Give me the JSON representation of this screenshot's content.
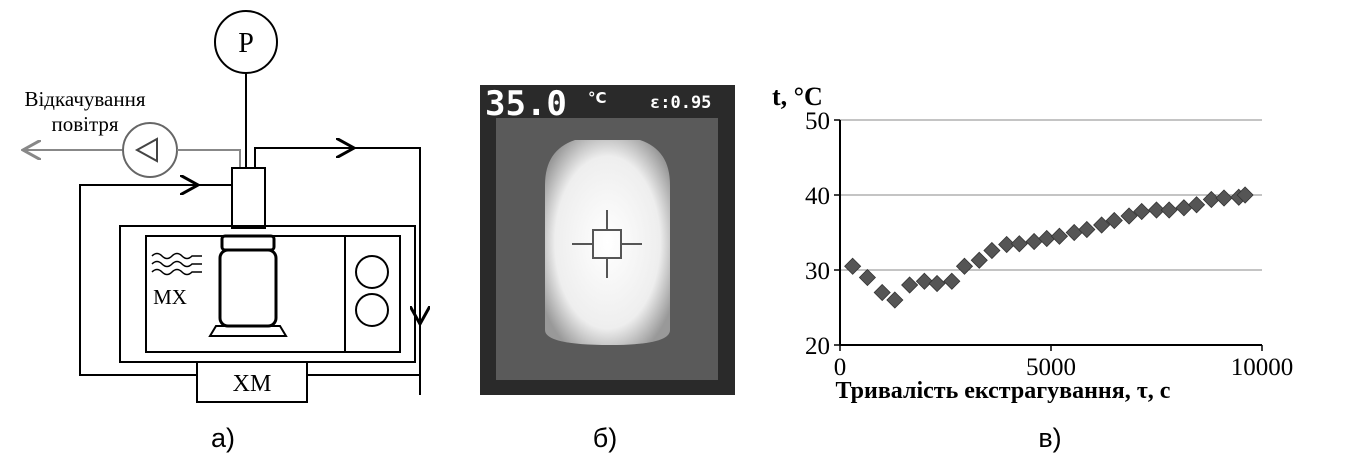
{
  "diagram": {
    "gauge": "P",
    "pump_label_1": "Відкачування",
    "pump_label_2": "повітря",
    "heater": "MX",
    "cooler": "XM"
  },
  "thermal_image": {
    "temperature": "35.0",
    "unit": "°C",
    "emissivity": "ε:0.95"
  },
  "captions": [
    "а)",
    "б)",
    "в)"
  ],
  "chart_data": {
    "type": "scatter",
    "y_label": "t, °C",
    "x_label": "Тривалість екстрагування, τ, с",
    "color": "#555555",
    "grid": true,
    "xlim": [
      0,
      10000
    ],
    "xticks": [
      0,
      5000,
      10000
    ],
    "ylim": [
      20,
      50
    ],
    "yticks": [
      20,
      30,
      40,
      50
    ],
    "x": [
      300,
      650,
      1000,
      1300,
      1650,
      2000,
      2300,
      2650,
      2950,
      3300,
      3600,
      3950,
      4250,
      4600,
      4900,
      5200,
      5550,
      5850,
      6200,
      6500,
      6850,
      7150,
      7500,
      7800,
      8150,
      8450,
      8800,
      9100,
      9450,
      9600
    ],
    "values": [
      30.5,
      29,
      27,
      26,
      28,
      28.5,
      28.2,
      28.5,
      30.5,
      31.3,
      32.6,
      33.4,
      33.5,
      33.8,
      34.2,
      34.5,
      35,
      35.4,
      36,
      36.6,
      37.2,
      37.8,
      38,
      38,
      38.3,
      38.7,
      39.4,
      39.6,
      39.7,
      40
    ]
  }
}
